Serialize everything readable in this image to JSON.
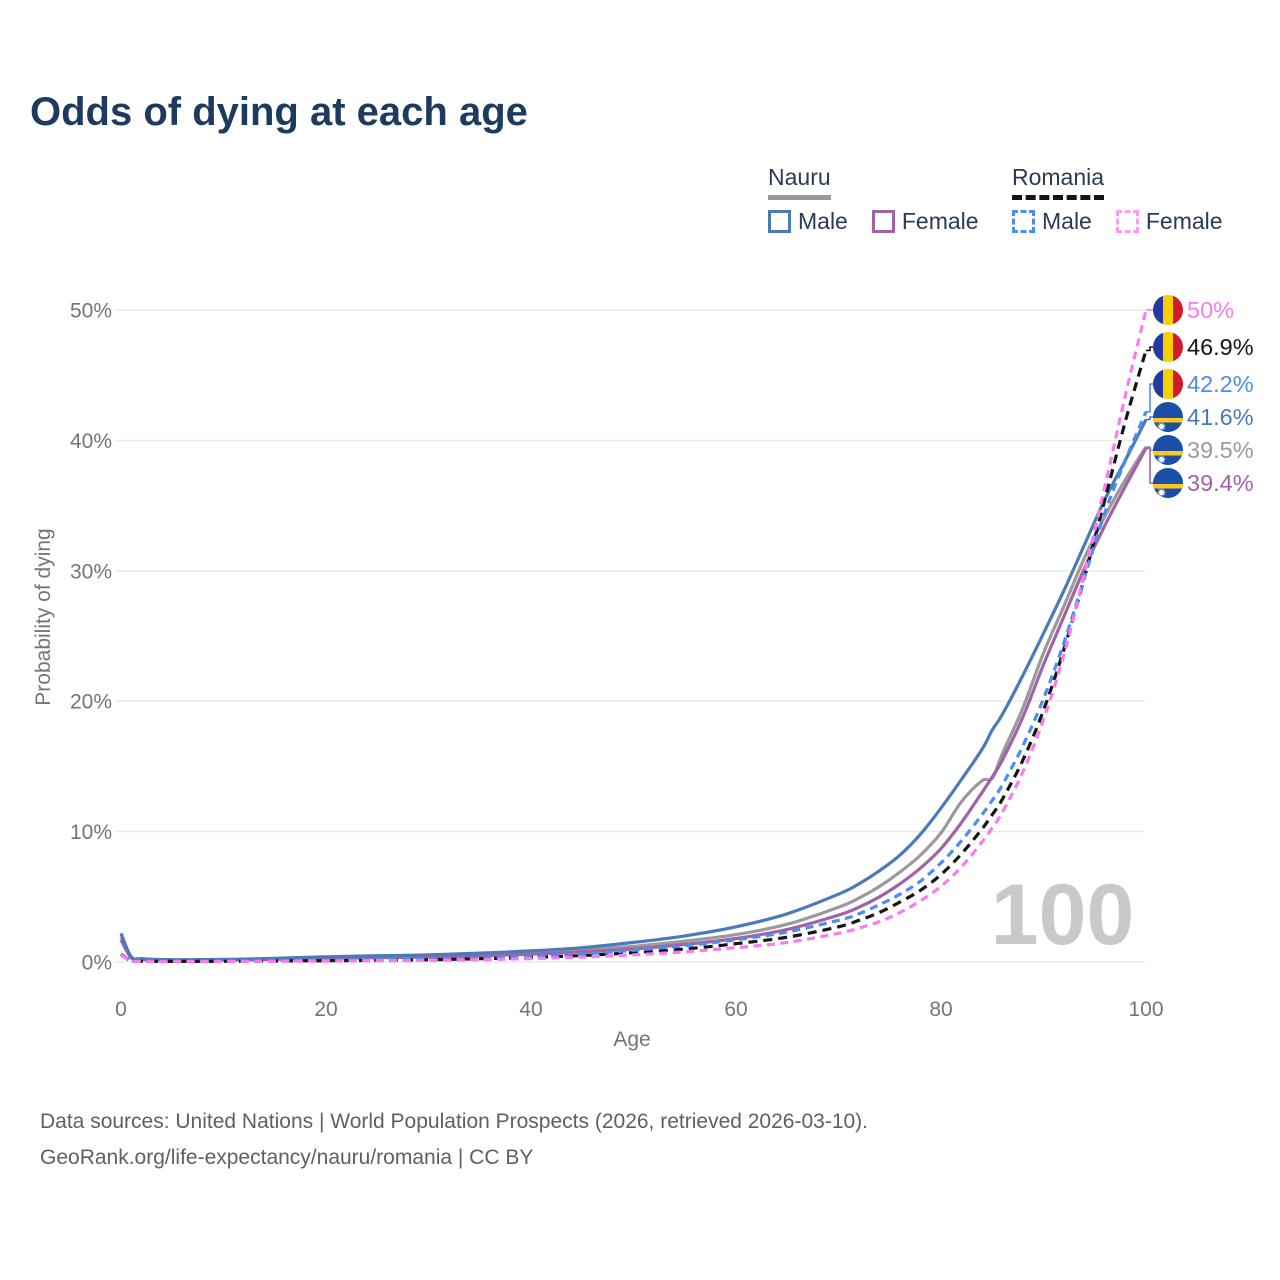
{
  "page": {
    "title": "Odds of dying at each age",
    "watermark": "100"
  },
  "legend": {
    "groups": [
      {
        "label": "Nauru",
        "underline_style": "solid",
        "underline_color": "#999999",
        "items": [
          {
            "label": "Male",
            "color": "#4a7ab8",
            "dashed": false
          },
          {
            "label": "Female",
            "color": "#a362a6",
            "dashed": false
          }
        ]
      },
      {
        "label": "Romania",
        "underline_style": "dashed",
        "underline_color": "#141414",
        "items": [
          {
            "label": "Male",
            "color": "#4d8df2",
            "dashed": true
          },
          {
            "label": "Female",
            "color": "#f99df3",
            "dashed": true
          }
        ]
      }
    ]
  },
  "axes": {
    "y_title": "Probability of dying",
    "x_title": "Age",
    "y_ticks": [
      "0%",
      "10%",
      "20%",
      "30%",
      "40%",
      "50%"
    ],
    "x_ticks": [
      "0",
      "20",
      "40",
      "60",
      "80",
      "100"
    ]
  },
  "footer": {
    "line1": "Data sources: United Nations | World Population Prospects (2026, retrieved 2026-03-10).",
    "line2": "GeoRank.org/life-expectancy/nauru/romania | CC BY"
  },
  "chart_data": {
    "type": "line",
    "title": "Odds of dying at each age",
    "xlabel": "Age",
    "ylabel": "Probability of dying",
    "xlim": [
      0,
      100
    ],
    "ylim_percent": [
      0,
      50
    ],
    "grid": "horizontal",
    "legend_position": "top-right",
    "x_tick_values": [
      0,
      20,
      40,
      60,
      80,
      100
    ],
    "y_tick_values": [
      0,
      10,
      20,
      30,
      40,
      50
    ],
    "x": [
      0,
      1,
      2,
      5,
      10,
      15,
      20,
      25,
      30,
      35,
      40,
      45,
      50,
      55,
      60,
      65,
      70,
      72,
      74,
      76,
      78,
      80,
      82,
      84,
      85,
      86,
      88,
      90,
      92,
      94,
      96,
      98,
      100
    ],
    "units": "percent probability of dying at each age",
    "series": [
      {
        "id": "nauru_male",
        "name": "Nauru Male",
        "country": "Nauru",
        "sex": "Male",
        "color": "#4a7ab8",
        "dash": "",
        "flag": "nauru-flag",
        "end_label": "41.6%",
        "label_row": 3,
        "values": [
          2.2,
          0.4,
          0.25,
          0.18,
          0.2,
          0.28,
          0.4,
          0.48,
          0.55,
          0.68,
          0.85,
          1.1,
          1.5,
          2.0,
          2.7,
          3.7,
          5.2,
          6.0,
          7.0,
          8.2,
          9.8,
          11.8,
          14.0,
          16.3,
          17.8,
          19.0,
          22.0,
          25.2,
          28.5,
          32.0,
          35.5,
          38.5,
          41.6
        ]
      },
      {
        "id": "nauru_female",
        "name": "Nauru Female",
        "country": "Nauru",
        "sex": "Female",
        "color": "#a362a6",
        "dash": "",
        "flag": "nauru-flag",
        "end_label": "39.4%",
        "label_row": 5,
        "values": [
          1.7,
          0.3,
          0.2,
          0.13,
          0.14,
          0.2,
          0.27,
          0.33,
          0.38,
          0.47,
          0.6,
          0.78,
          1.0,
          1.35,
          1.8,
          2.5,
          3.6,
          4.2,
          5.0,
          6.0,
          7.2,
          8.7,
          10.7,
          13.0,
          14.2,
          15.5,
          18.8,
          22.8,
          26.5,
          30.2,
          33.5,
          36.5,
          39.4
        ]
      },
      {
        "id": "nauru_both",
        "name": "Nauru",
        "country": "Nauru",
        "sex": "Both sexes",
        "color": "#9a9a9a",
        "dash": "",
        "flag": "nauru-flag",
        "end_label": "39.5%",
        "label_row": 4,
        "values": [
          1.95,
          0.35,
          0.22,
          0.15,
          0.17,
          0.24,
          0.33,
          0.4,
          0.45,
          0.55,
          0.7,
          0.9,
          1.2,
          1.6,
          2.1,
          2.9,
          4.2,
          4.9,
          5.8,
          6.9,
          8.2,
          9.9,
          12.3,
          13.9,
          14.1,
          16.0,
          19.5,
          23.7,
          27.3,
          31.0,
          34.2,
          37.0,
          39.5
        ]
      },
      {
        "id": "romania_male",
        "name": "Romania Male",
        "country": "Romania",
        "sex": "Male",
        "color": "#4d8df2",
        "dash": "8 5.5",
        "flag": "romania-flag",
        "end_label": "42.2%",
        "label_row": 2,
        "values": [
          0.62,
          0.1,
          0.07,
          0.05,
          0.06,
          0.09,
          0.12,
          0.16,
          0.2,
          0.3,
          0.42,
          0.62,
          0.9,
          1.25,
          1.7,
          2.3,
          3.2,
          3.7,
          4.4,
          5.2,
          6.2,
          7.6,
          9.3,
          11.3,
          12.4,
          13.6,
          16.6,
          20.2,
          24.5,
          29.5,
          34.5,
          38.5,
          42.2
        ]
      },
      {
        "id": "romania_female",
        "name": "Romania Female",
        "country": "Romania",
        "sex": "Female",
        "color": "#f87cef",
        "dash": "8 5.5",
        "flag": "romania-flag",
        "end_label": "50%",
        "label_row": 0,
        "values": [
          0.52,
          0.08,
          0.05,
          0.04,
          0.045,
          0.06,
          0.08,
          0.1,
          0.13,
          0.18,
          0.26,
          0.38,
          0.55,
          0.78,
          1.1,
          1.5,
          2.2,
          2.6,
          3.1,
          3.8,
          4.7,
          5.8,
          7.3,
          9.2,
          10.3,
          11.5,
          14.6,
          18.6,
          23.6,
          29.8,
          36.5,
          43.5,
          50.0
        ]
      },
      {
        "id": "romania_both",
        "name": "Romania",
        "country": "Romania",
        "sex": "Both sexes",
        "color": "#161616",
        "dash": "9 6",
        "flag": "romania-flag",
        "end_label": "46.9%",
        "label_row": 1,
        "values": [
          0.58,
          0.09,
          0.06,
          0.045,
          0.05,
          0.08,
          0.1,
          0.13,
          0.17,
          0.25,
          0.35,
          0.5,
          0.72,
          1.0,
          1.4,
          1.9,
          2.7,
          3.2,
          3.8,
          4.6,
          5.5,
          6.7,
          8.3,
          10.2,
          11.3,
          12.5,
          15.5,
          19.3,
          24.0,
          29.5,
          35.5,
          41.5,
          46.9
        ]
      }
    ]
  }
}
